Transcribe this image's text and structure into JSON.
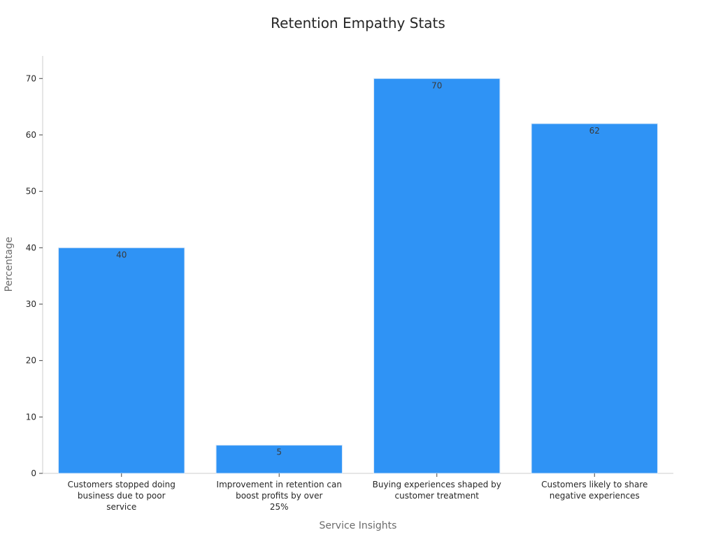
{
  "chart_data": {
    "type": "bar",
    "title": "Retention Empathy Stats",
    "xlabel": "Service Insights",
    "ylabel": "Percentage",
    "ylim": [
      0,
      74
    ],
    "yticks": [
      0,
      10,
      20,
      30,
      40,
      50,
      60,
      70
    ],
    "grid": false,
    "categories": [
      [
        "Customers stopped doing",
        "business due to poor",
        "service"
      ],
      [
        "Improvement in retention can",
        "boost profits by over",
        "25%"
      ],
      [
        "Buying experiences shaped by",
        "customer treatment"
      ],
      [
        "Customers likely to share",
        "negative experiences"
      ]
    ],
    "values": [
      40,
      5,
      70,
      62
    ],
    "bar_color": "#2f93f5"
  }
}
